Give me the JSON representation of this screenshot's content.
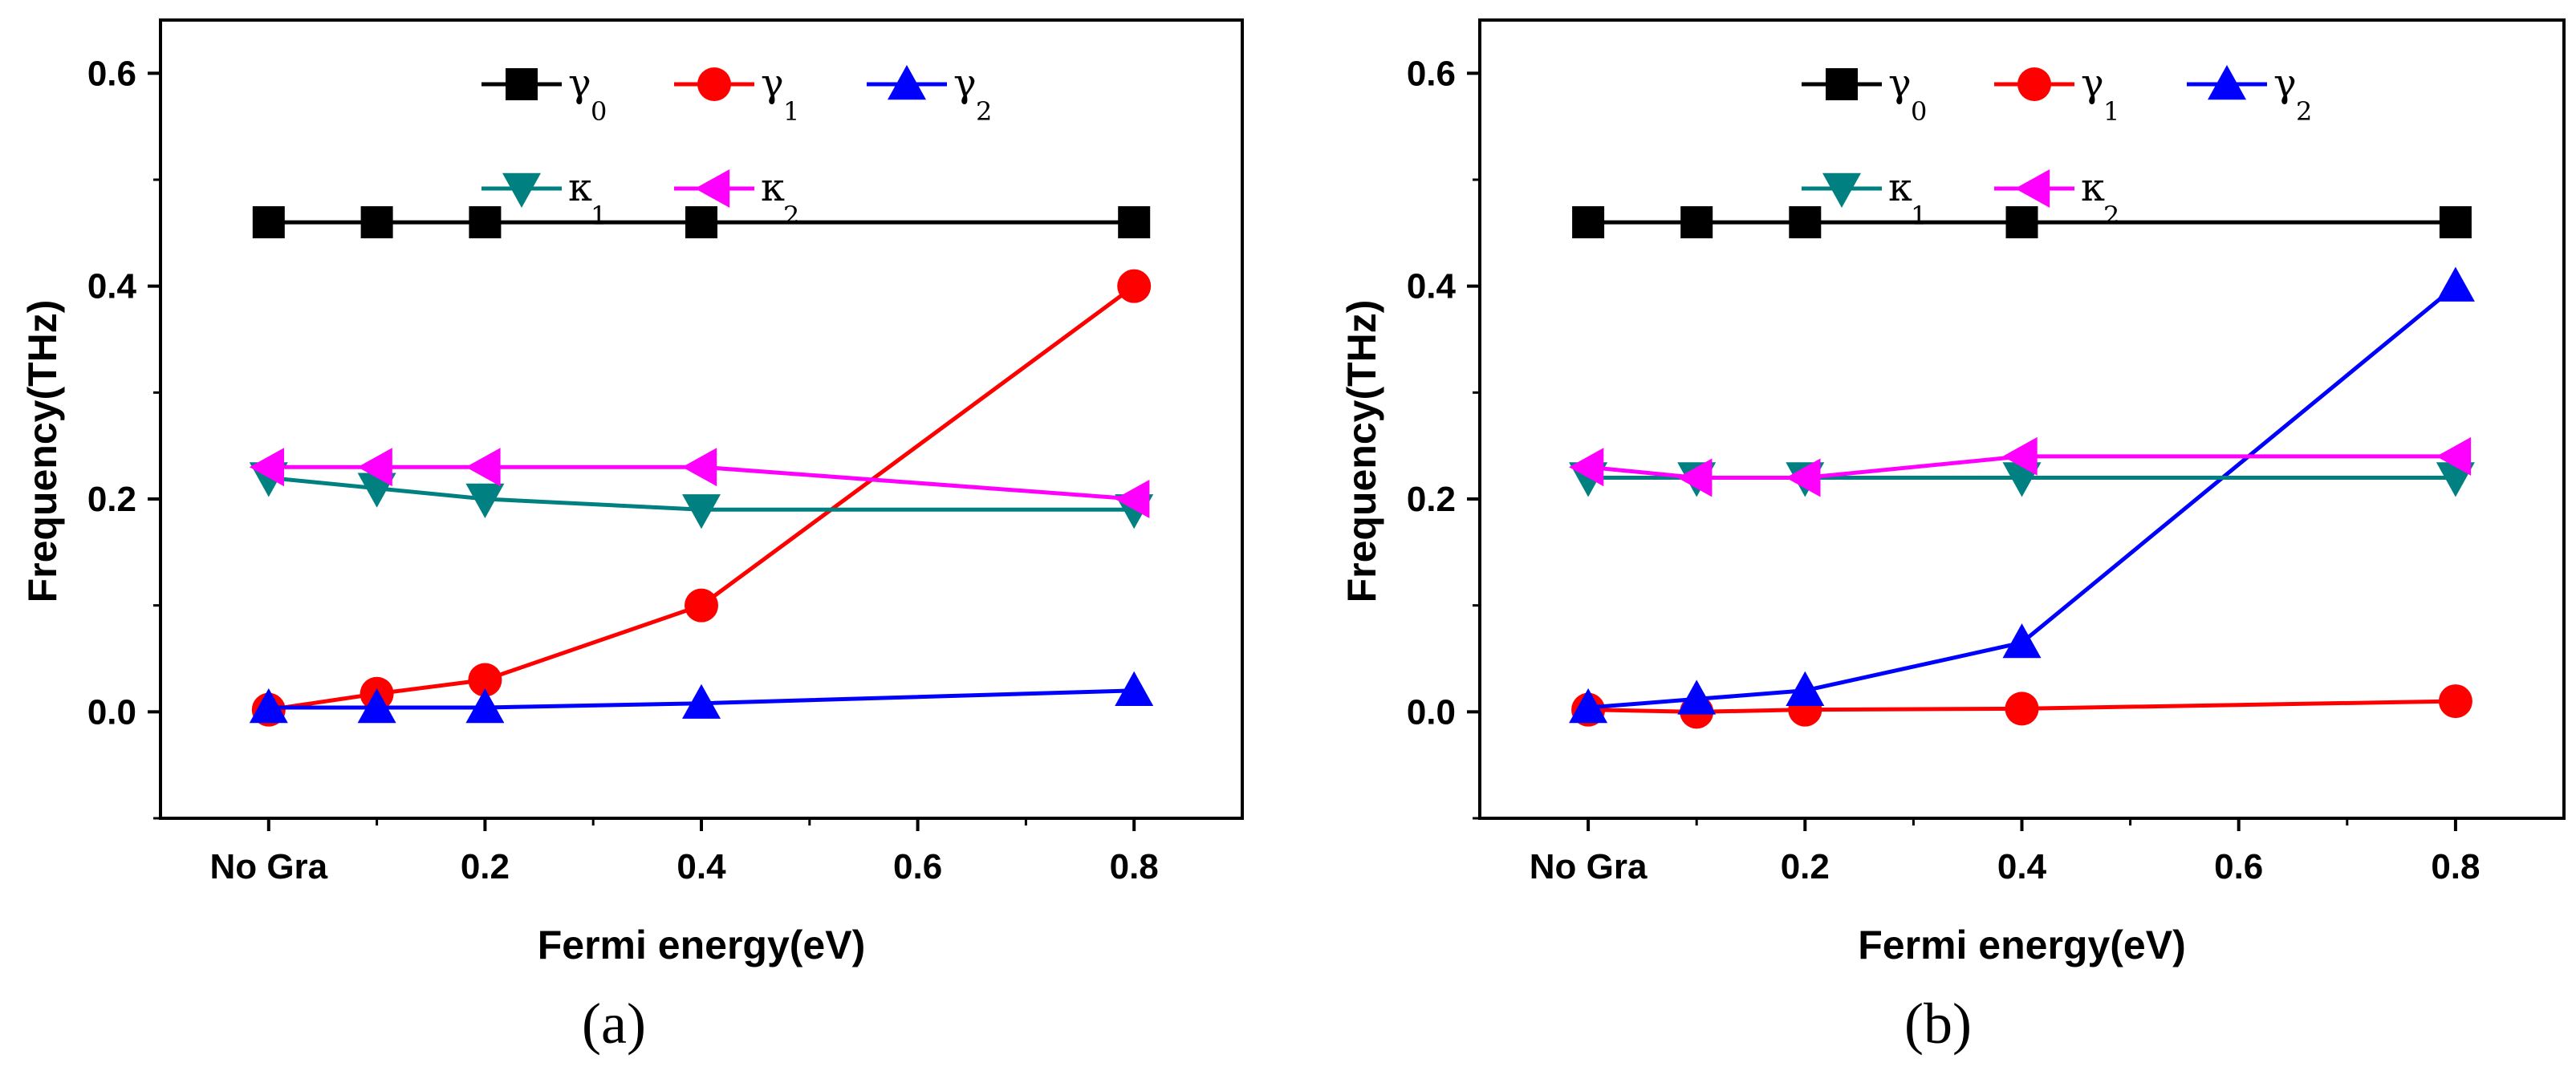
{
  "chart_data": [
    {
      "type": "line",
      "panel_label": "(a)",
      "xlabel": "Fermi energy(eV)",
      "ylabel": "Frequency(THz)",
      "xlim": [
        -0.1,
        0.9
      ],
      "ylim": [
        -0.1,
        0.65
      ],
      "x_ticks": [
        {
          "v": 0.0,
          "label": "No Gra"
        },
        {
          "v": 0.2,
          "label": "0.2"
        },
        {
          "v": 0.4,
          "label": "0.4"
        },
        {
          "v": 0.6,
          "label": "0.6"
        },
        {
          "v": 0.8,
          "label": "0.8"
        }
      ],
      "y_ticks": [
        {
          "v": 0.0,
          "label": "0.0"
        },
        {
          "v": 0.2,
          "label": "0.2"
        },
        {
          "v": 0.4,
          "label": "0.4"
        },
        {
          "v": 0.6,
          "label": "0.6"
        }
      ],
      "x": [
        0.0,
        0.1,
        0.2,
        0.4,
        0.8
      ],
      "series": [
        {
          "name": "γ",
          "sub": "0",
          "color": "#000000",
          "marker": "square",
          "values": [
            0.46,
            0.46,
            0.46,
            0.46,
            0.46
          ]
        },
        {
          "name": "γ",
          "sub": "1",
          "color": "#ff0000",
          "marker": "circle",
          "values": [
            0.002,
            0.017,
            0.03,
            0.1,
            0.4
          ]
        },
        {
          "name": "γ",
          "sub": "2",
          "color": "#0000ff",
          "marker": "triangle-up",
          "values": [
            0.004,
            0.004,
            0.004,
            0.008,
            0.02
          ]
        },
        {
          "name": "κ",
          "sub": "1",
          "color": "#008080",
          "marker": "triangle-down",
          "values": [
            0.22,
            0.21,
            0.2,
            0.19,
            0.19
          ]
        },
        {
          "name": "κ",
          "sub": "2",
          "color": "#ff00ff",
          "marker": "triangle-left",
          "values": [
            0.23,
            0.23,
            0.23,
            0.23,
            0.2
          ]
        }
      ]
    },
    {
      "type": "line",
      "panel_label": "(b)",
      "xlabel": "Fermi energy(eV)",
      "ylabel": "Frequency(THz)",
      "xlim": [
        -0.1,
        0.9
      ],
      "ylim": [
        -0.1,
        0.65
      ],
      "x_ticks": [
        {
          "v": 0.0,
          "label": "No Gra"
        },
        {
          "v": 0.2,
          "label": "0.2"
        },
        {
          "v": 0.4,
          "label": "0.4"
        },
        {
          "v": 0.6,
          "label": "0.6"
        },
        {
          "v": 0.8,
          "label": "0.8"
        }
      ],
      "y_ticks": [
        {
          "v": 0.0,
          "label": "0.0"
        },
        {
          "v": 0.2,
          "label": "0.2"
        },
        {
          "v": 0.4,
          "label": "0.4"
        },
        {
          "v": 0.6,
          "label": "0.6"
        }
      ],
      "x": [
        0.0,
        0.1,
        0.2,
        0.4,
        0.8
      ],
      "series": [
        {
          "name": "γ",
          "sub": "0",
          "color": "#000000",
          "marker": "square",
          "values": [
            0.46,
            0.46,
            0.46,
            0.46,
            0.46
          ]
        },
        {
          "name": "γ",
          "sub": "1",
          "color": "#ff0000",
          "marker": "circle",
          "values": [
            0.002,
            0.0,
            0.002,
            0.003,
            0.01
          ]
        },
        {
          "name": "γ",
          "sub": "2",
          "color": "#0000ff",
          "marker": "triangle-up",
          "values": [
            0.004,
            0.012,
            0.02,
            0.065,
            0.4
          ]
        },
        {
          "name": "κ",
          "sub": "1",
          "color": "#008080",
          "marker": "triangle-down",
          "values": [
            0.22,
            0.22,
            0.22,
            0.22,
            0.22
          ]
        },
        {
          "name": "κ",
          "sub": "2",
          "color": "#ff00ff",
          "marker": "triangle-left",
          "values": [
            0.23,
            0.22,
            0.22,
            0.24,
            0.24
          ]
        }
      ]
    }
  ]
}
